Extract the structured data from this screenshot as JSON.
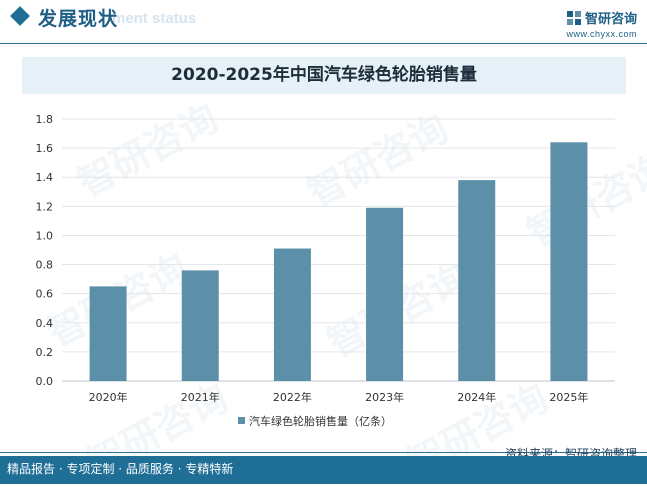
{
  "header": {
    "section_title": "发展现状",
    "section_sub": "ment status",
    "brand_name": "智研咨询",
    "brand_url": "www.chyxx.com"
  },
  "chart_data": {
    "type": "bar",
    "title": "2020-2025年中国汽车绿色轮胎销售量",
    "categories": [
      "2020年",
      "2021年",
      "2022年",
      "2023年",
      "2024年",
      "2025年"
    ],
    "series": [
      {
        "name": "汽车绿色轮胎销售量（亿条）",
        "values": [
          0.65,
          0.76,
          0.91,
          1.19,
          1.38,
          1.64
        ]
      }
    ],
    "yticks": [
      "0.0",
      "0.2",
      "0.4",
      "0.6",
      "0.8",
      "1.0",
      "1.2",
      "1.4",
      "1.6",
      "1.8"
    ],
    "ylim": [
      0,
      1.8
    ],
    "grid": true,
    "legend_position": "bottom",
    "bar_color": "#5b90a8"
  },
  "watermark": "智研咨询",
  "footer": {
    "tagline": "精品报告 · 专项定制 · 品质服务 · 专精特新",
    "source": "资料来源：智研咨询整理"
  }
}
